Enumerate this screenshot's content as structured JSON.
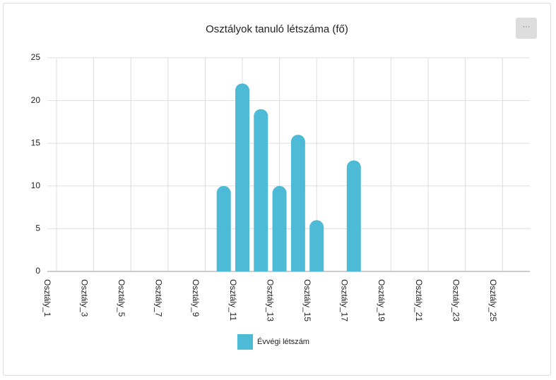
{
  "menu": "···",
  "chart_data": {
    "type": "bar",
    "title": "Osztályok tanuló létszáma (fő)",
    "categories": [
      "Osztály_1",
      null,
      "Osztály_3",
      null,
      "Osztály_5",
      null,
      "Osztály_7",
      null,
      "Osztály_9",
      null,
      "Osztály_11",
      null,
      "Osztály_13",
      null,
      "Osztály_15",
      null,
      "Osztály_17",
      null,
      "Osztály_19",
      null,
      "Osztály_21",
      null,
      "Osztály_23",
      null,
      "Osztály_25",
      null
    ],
    "series": [
      {
        "name": "Évvégi létszám",
        "color": "#4dbad6",
        "values": [
          0,
          0,
          0,
          0,
          0,
          0,
          0,
          0,
          0,
          10,
          22,
          19,
          10,
          16,
          6,
          0,
          13,
          0,
          0,
          0,
          0,
          0,
          0,
          0,
          0,
          0
        ]
      }
    ],
    "ylim": [
      0,
      25
    ],
    "yticks": [
      0,
      5,
      10,
      15,
      20,
      25
    ],
    "grid": true,
    "legend": "bottom"
  }
}
